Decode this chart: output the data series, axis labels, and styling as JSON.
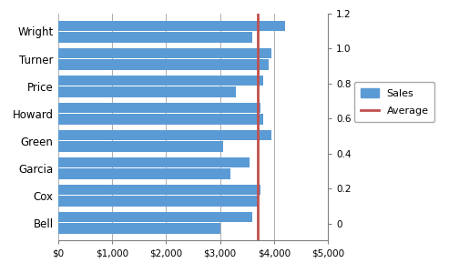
{
  "categories": [
    "Wright",
    "Turner",
    "Price",
    "Howard",
    "Green",
    "Garcia",
    "Cox",
    "Bell"
  ],
  "bar_data": [
    [
      4200,
      3600
    ],
    [
      3950,
      3900
    ],
    [
      3800,
      3300
    ],
    [
      3750,
      3800
    ],
    [
      3950,
      3050
    ],
    [
      3550,
      3200
    ],
    [
      3750,
      3700
    ],
    [
      3600,
      3000
    ]
  ],
  "average_line": 3700,
  "bar_color": "#5B9BD5",
  "line_color": "#C0504D",
  "xlim": [
    0,
    5000
  ],
  "xticks": [
    0,
    1000,
    2000,
    3000,
    4000,
    5000
  ],
  "xticklabels": [
    "$0",
    "$1,000",
    "$2,000",
    "$3,000",
    "$4,000",
    "$5,000"
  ],
  "yticks_right": [
    0,
    0.2,
    0.4,
    0.6,
    0.8,
    1.0,
    1.2
  ],
  "legend_sales": "Sales",
  "legend_average": "Average",
  "bg_color": "#FFFFFF",
  "grid_color": "#A0A0A0",
  "bar_height": 0.38,
  "bar_gap": 0.04
}
